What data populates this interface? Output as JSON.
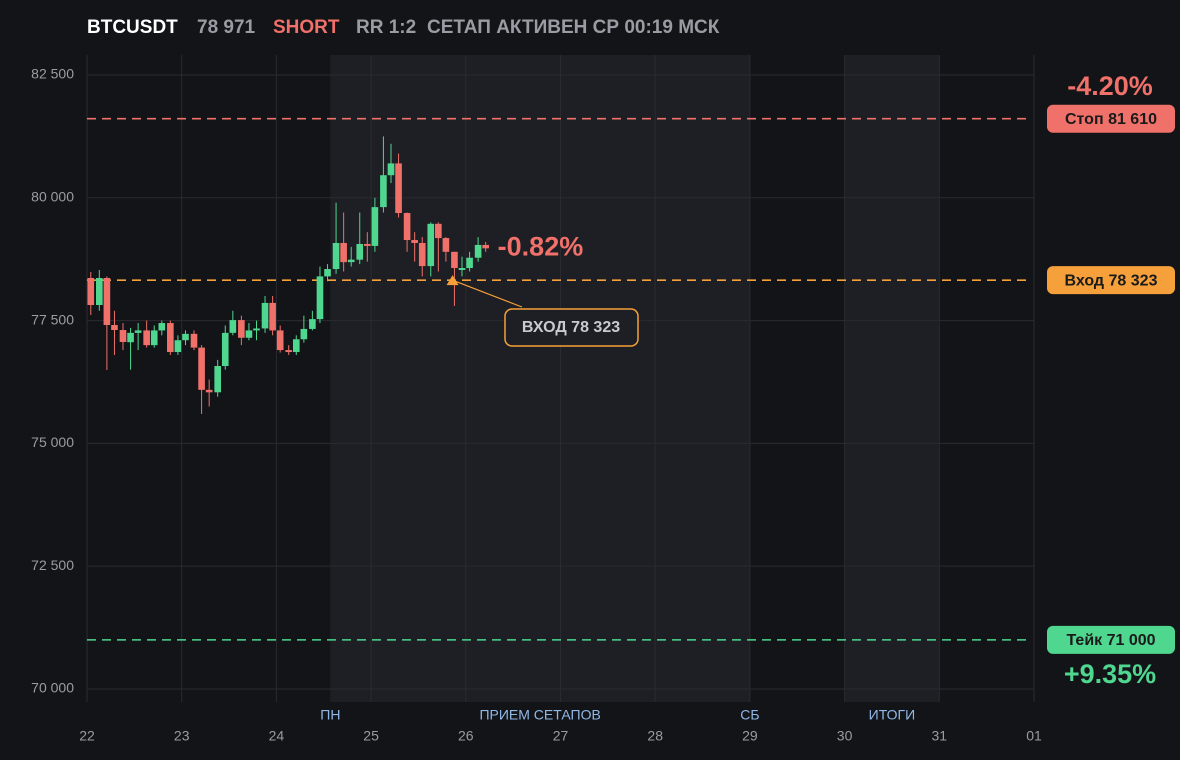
{
  "header": {
    "symbol": "BTCUSDT",
    "price": {
      "value": 78971,
      "label": "78 971"
    },
    "side": "SHORT",
    "rr": "RR 1:2",
    "status": "СЕТАП АКТИВЕН СР 00:19 МСК"
  },
  "chart_data": {
    "type": "candlestick",
    "x": [
      22.04,
      22.13,
      22.21,
      22.29,
      22.38,
      22.46,
      22.54,
      22.63,
      22.71,
      22.79,
      22.88,
      22.96,
      23.04,
      23.13,
      23.21,
      23.29,
      23.38,
      23.46,
      23.54,
      23.63,
      23.71,
      23.79,
      23.88,
      23.96,
      24.04,
      24.13,
      24.21,
      24.29,
      24.38,
      24.46,
      24.54,
      24.63,
      24.71,
      24.79,
      24.88,
      24.96,
      25.04,
      25.13,
      25.21,
      25.29,
      25.38,
      25.46,
      25.54,
      25.63,
      25.71,
      25.79,
      25.88,
      25.96,
      26.04,
      26.13,
      26.21
    ],
    "open": [
      78367,
      77817,
      78367,
      77410,
      77308,
      77060,
      77250,
      77300,
      77000,
      77300,
      77450,
      76860,
      77100,
      77230,
      76950,
      76090,
      76040,
      76575,
      77250,
      77510,
      77150,
      77300,
      77340,
      77860,
      77300,
      76900,
      76860,
      77120,
      77330,
      77530,
      78400,
      78550,
      79080,
      78690,
      78740,
      79060,
      79020,
      79810,
      80460,
      80700,
      79690,
      79140,
      79080,
      78610,
      79470,
      79180,
      78900,
      78530,
      78570,
      78780,
      79040
    ],
    "high": [
      78489,
      78530,
      78400,
      77700,
      77450,
      77350,
      77450,
      77500,
      77400,
      77500,
      77500,
      77200,
      77300,
      77300,
      77000,
      76300,
      76700,
      77400,
      77700,
      77600,
      77450,
      77500,
      78000,
      78000,
      77400,
      77000,
      77200,
      77600,
      77700,
      78600,
      78650,
      79900,
      79700,
      79000,
      79700,
      79300,
      80000,
      81250,
      81100,
      80900,
      79700,
      79300,
      79200,
      79500,
      79500,
      79200,
      78900,
      78800,
      78900,
      79200,
      79100
    ],
    "low": [
      77614,
      77700,
      76494,
      76800,
      76900,
      76500,
      76900,
      76950,
      76950,
      77200,
      76800,
      76800,
      77000,
      76900,
      75600,
      75750,
      75950,
      76500,
      77200,
      77000,
      77100,
      77100,
      77250,
      77200,
      76850,
      76800,
      76800,
      77050,
      77300,
      77450,
      78300,
      78450,
      78500,
      78600,
      78650,
      78700,
      78900,
      79700,
      80300,
      79600,
      78900,
      78700,
      78400,
      78400,
      78500,
      78700,
      77800,
      78400,
      78500,
      78700,
      78900
    ],
    "close": [
      77817,
      78367,
      77410,
      77308,
      77064,
      77250,
      77300,
      77000,
      77300,
      77450,
      76860,
      77100,
      77230,
      76950,
      76090,
      76040,
      76575,
      77250,
      77510,
      77150,
      77300,
      77340,
      77860,
      77300,
      76900,
      76860,
      77120,
      77330,
      77530,
      78400,
      78550,
      79080,
      78690,
      78740,
      79060,
      79020,
      79810,
      80460,
      80700,
      79690,
      79140,
      79080,
      78610,
      79470,
      79180,
      78900,
      78570,
      78570,
      78780,
      79040,
      78971
    ],
    "up_color": "#4fd68f",
    "down_color": "#f0706a",
    "xlim": [
      22,
      32
    ],
    "xticks": [
      22,
      23,
      24,
      25,
      26,
      27,
      28,
      29,
      30,
      31,
      {
        "value": 32,
        "label": "01"
      }
    ],
    "ylim": [
      69735,
      82907
    ],
    "yticks": [
      {
        "value": 70000,
        "label": "70 000"
      },
      {
        "value": 72500,
        "label": "72 500"
      },
      {
        "value": 75000,
        "label": "75 000"
      },
      {
        "value": 77500,
        "label": "77 500"
      },
      {
        "value": 80000,
        "label": "80 000"
      },
      {
        "value": 82500,
        "label": "82 500"
      }
    ],
    "grid": true,
    "levels": [
      {
        "value": 81610,
        "label": "Стоп 81 610",
        "color": "#f0706a",
        "change": {
          "value": -4.2,
          "label": "-4.20%"
        }
      },
      {
        "value": 78323,
        "label": "Вход 78 323",
        "color": "#f5a03a"
      },
      {
        "value": 71000,
        "label": "Тейк 71 000",
        "color": "#4fd68f",
        "change": {
          "value": 9.35,
          "label": "+9.35%"
        }
      }
    ],
    "regions": [
      {
        "start": 24.57,
        "end": 29,
        "label": "ПРИЕМ СЕТАПОВ",
        "start_label": "ПН",
        "end_label": "СБ"
      },
      {
        "start": 30,
        "end": 31,
        "label": "ИТОГИ"
      }
    ],
    "annotation": {
      "x": 25.86,
      "value": 78323,
      "label": "ВХОД 78 323"
    },
    "current": {
      "change": {
        "value": -0.82,
        "label": "-0.82%"
      },
      "color": "#f0706a"
    }
  }
}
